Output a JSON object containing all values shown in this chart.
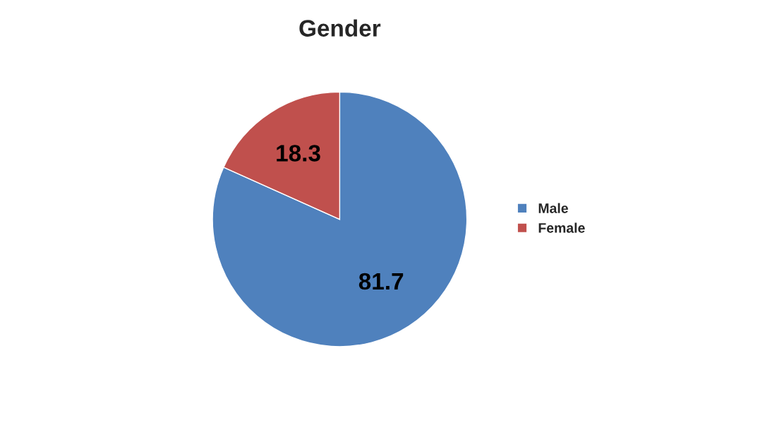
{
  "chart_data": {
    "type": "pie",
    "title": "Gender",
    "categories": [
      "Male",
      "Female"
    ],
    "values": [
      81.7,
      18.3
    ],
    "colors": [
      "#4f81bd",
      "#c0504d"
    ],
    "data_labels": true,
    "legend": "right"
  }
}
